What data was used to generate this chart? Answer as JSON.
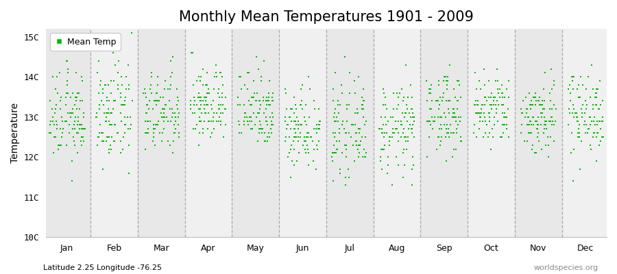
{
  "title": "Monthly Mean Temperatures 1901 - 2009",
  "ylabel": "Temperature",
  "xlabel_bottom": "Latitude 2.25 Longitude -76.25",
  "watermark": "worldspecies.org",
  "legend_label": "Mean Temp",
  "ylim": [
    10.0,
    15.2
  ],
  "yticks": [
    10,
    11,
    12,
    13,
    14,
    15
  ],
  "ytick_labels": [
    "10C",
    "11C",
    "12C",
    "13C",
    "14C",
    "15C"
  ],
  "months": [
    "Jan",
    "Feb",
    "Mar",
    "Apr",
    "May",
    "Jun",
    "Jul",
    "Aug",
    "Sep",
    "Oct",
    "Nov",
    "Dec"
  ],
  "dot_color": "#00bb00",
  "bg_color": "#eeeeee",
  "n_years": 109,
  "monthly_means": [
    13.0,
    13.05,
    13.1,
    13.3,
    13.25,
    12.75,
    12.65,
    12.7,
    13.1,
    13.15,
    13.0,
    13.1
  ],
  "monthly_stds": [
    0.55,
    0.6,
    0.52,
    0.48,
    0.5,
    0.5,
    0.55,
    0.55,
    0.5,
    0.48,
    0.48,
    0.52
  ],
  "title_fontsize": 15,
  "axis_fontsize": 10,
  "tick_fontsize": 9,
  "marker_size": 4,
  "legend_marker_size": 6
}
